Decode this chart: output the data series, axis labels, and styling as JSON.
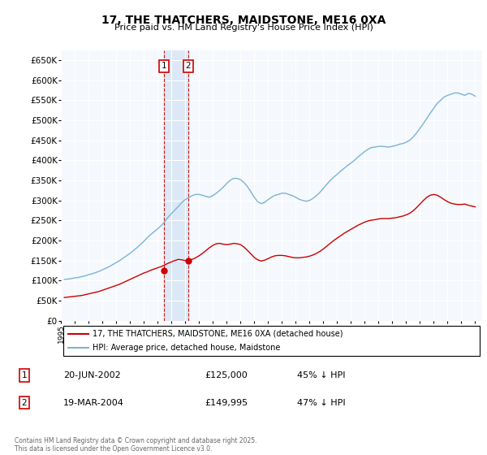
{
  "title": "17, THE THATCHERS, MAIDSTONE, ME16 0XA",
  "subtitle": "Price paid vs. HM Land Registry's House Price Index (HPI)",
  "ylim": [
    0,
    675000
  ],
  "yticks": [
    0,
    50000,
    100000,
    150000,
    200000,
    250000,
    300000,
    350000,
    400000,
    450000,
    500000,
    550000,
    600000,
    650000
  ],
  "hpi_color": "#7ab4d8",
  "price_color": "#cc0000",
  "transaction1": {
    "date": "20-JUN-2002",
    "price": 125000,
    "hpi_pct": "45% ↓ HPI",
    "label": "1"
  },
  "transaction2": {
    "date": "19-MAR-2004",
    "price": 149995,
    "hpi_pct": "47% ↓ HPI",
    "label": "2"
  },
  "legend_line1": "17, THE THATCHERS, MAIDSTONE, ME16 0XA (detached house)",
  "legend_line2": "HPI: Average price, detached house, Maidstone",
  "footer": "Contains HM Land Registry data © Crown copyright and database right 2025.\nThis data is licensed under the Open Government Licence v3.0.",
  "hpi_data_x": [
    1995.25,
    1995.5,
    1995.75,
    1996.0,
    1996.25,
    1996.5,
    1996.75,
    1997.0,
    1997.25,
    1997.5,
    1997.75,
    1998.0,
    1998.25,
    1998.5,
    1998.75,
    1999.0,
    1999.25,
    1999.5,
    1999.75,
    2000.0,
    2000.25,
    2000.5,
    2000.75,
    2001.0,
    2001.25,
    2001.5,
    2001.75,
    2002.0,
    2002.25,
    2002.5,
    2002.75,
    2003.0,
    2003.25,
    2003.5,
    2003.75,
    2004.0,
    2004.25,
    2004.5,
    2004.75,
    2005.0,
    2005.25,
    2005.5,
    2005.75,
    2006.0,
    2006.25,
    2006.5,
    2006.75,
    2007.0,
    2007.25,
    2007.5,
    2007.75,
    2008.0,
    2008.25,
    2008.5,
    2008.75,
    2009.0,
    2009.25,
    2009.5,
    2009.75,
    2010.0,
    2010.25,
    2010.5,
    2010.75,
    2011.0,
    2011.25,
    2011.5,
    2011.75,
    2012.0,
    2012.25,
    2012.5,
    2012.75,
    2013.0,
    2013.25,
    2013.5,
    2013.75,
    2014.0,
    2014.25,
    2014.5,
    2014.75,
    2015.0,
    2015.25,
    2015.5,
    2015.75,
    2016.0,
    2016.25,
    2016.5,
    2016.75,
    2017.0,
    2017.25,
    2017.5,
    2017.75,
    2018.0,
    2018.25,
    2018.5,
    2018.75,
    2019.0,
    2019.25,
    2019.5,
    2019.75,
    2020.0,
    2020.25,
    2020.5,
    2020.75,
    2021.0,
    2021.25,
    2021.5,
    2021.75,
    2022.0,
    2022.25,
    2022.5,
    2022.75,
    2023.0,
    2023.25,
    2023.5,
    2023.75,
    2024.0,
    2024.25,
    2024.5,
    2024.75,
    2025.0
  ],
  "hpi_data_y": [
    103000,
    104000,
    105000,
    107000,
    108000,
    110000,
    112000,
    115000,
    117000,
    120000,
    123000,
    127000,
    131000,
    135000,
    140000,
    145000,
    150000,
    156000,
    162000,
    168000,
    175000,
    182000,
    190000,
    198000,
    207000,
    215000,
    222000,
    229000,
    237000,
    246000,
    258000,
    267000,
    276000,
    285000,
    295000,
    302000,
    307000,
    312000,
    315000,
    315000,
    313000,
    310000,
    308000,
    312000,
    318000,
    325000,
    333000,
    342000,
    350000,
    355000,
    355000,
    352000,
    345000,
    335000,
    322000,
    308000,
    297000,
    292000,
    295000,
    302000,
    308000,
    313000,
    315000,
    318000,
    318000,
    315000,
    312000,
    308000,
    303000,
    300000,
    298000,
    300000,
    305000,
    312000,
    320000,
    330000,
    340000,
    350000,
    358000,
    365000,
    373000,
    380000,
    387000,
    393000,
    400000,
    408000,
    415000,
    422000,
    428000,
    432000,
    433000,
    435000,
    435000,
    434000,
    433000,
    435000,
    437000,
    440000,
    442000,
    445000,
    450000,
    458000,
    468000,
    480000,
    492000,
    505000,
    518000,
    530000,
    542000,
    550000,
    558000,
    562000,
    565000,
    568000,
    568000,
    565000,
    562000,
    567000,
    565000,
    560000
  ],
  "price_data_x": [
    1995.25,
    1995.5,
    1995.75,
    1996.0,
    1996.25,
    1996.5,
    1996.75,
    1997.0,
    1997.25,
    1997.5,
    1997.75,
    1998.0,
    1998.25,
    1998.5,
    1998.75,
    1999.0,
    1999.25,
    1999.5,
    1999.75,
    2000.0,
    2000.25,
    2000.5,
    2000.75,
    2001.0,
    2001.25,
    2001.5,
    2001.75,
    2002.0,
    2002.25,
    2002.5,
    2002.75,
    2003.0,
    2003.25,
    2003.5,
    2003.75,
    2004.0,
    2004.25,
    2004.5,
    2004.75,
    2005.0,
    2005.25,
    2005.5,
    2005.75,
    2006.0,
    2006.25,
    2006.5,
    2006.75,
    2007.0,
    2007.25,
    2007.5,
    2007.75,
    2008.0,
    2008.25,
    2008.5,
    2008.75,
    2009.0,
    2009.25,
    2009.5,
    2009.75,
    2010.0,
    2010.25,
    2010.5,
    2010.75,
    2011.0,
    2011.25,
    2011.5,
    2011.75,
    2012.0,
    2012.25,
    2012.5,
    2012.75,
    2013.0,
    2013.25,
    2013.5,
    2013.75,
    2014.0,
    2014.25,
    2014.5,
    2014.75,
    2015.0,
    2015.25,
    2015.5,
    2015.75,
    2016.0,
    2016.25,
    2016.5,
    2016.75,
    2017.0,
    2017.25,
    2017.5,
    2017.75,
    2018.0,
    2018.25,
    2018.5,
    2018.75,
    2019.0,
    2019.25,
    2019.5,
    2019.75,
    2020.0,
    2020.25,
    2020.5,
    2020.75,
    2021.0,
    2021.25,
    2021.5,
    2021.75,
    2022.0,
    2022.25,
    2022.5,
    2022.75,
    2023.0,
    2023.25,
    2023.5,
    2023.75,
    2024.0,
    2024.25,
    2024.5,
    2024.75,
    2025.0
  ],
  "price_data_y": [
    58000,
    59000,
    60000,
    61000,
    62000,
    63000,
    65000,
    67000,
    69000,
    71000,
    73000,
    76000,
    79000,
    82000,
    85000,
    88000,
    91000,
    95000,
    99000,
    103000,
    107000,
    111000,
    115000,
    119000,
    122000,
    126000,
    129000,
    132000,
    135000,
    139000,
    143000,
    147000,
    150000,
    153000,
    152000,
    150000,
    151000,
    153000,
    157000,
    162000,
    168000,
    175000,
    182000,
    188000,
    192000,
    193000,
    191000,
    190000,
    191000,
    193000,
    192000,
    190000,
    184000,
    176000,
    167000,
    158000,
    152000,
    149000,
    151000,
    155000,
    159000,
    162000,
    163000,
    163000,
    162000,
    160000,
    158000,
    157000,
    157000,
    158000,
    159000,
    161000,
    164000,
    168000,
    173000,
    179000,
    186000,
    193000,
    200000,
    206000,
    212000,
    218000,
    223000,
    228000,
    233000,
    238000,
    242000,
    246000,
    249000,
    251000,
    252000,
    254000,
    255000,
    255000,
    255000,
    256000,
    257000,
    259000,
    261000,
    264000,
    268000,
    274000,
    282000,
    291000,
    300000,
    308000,
    313000,
    315000,
    313000,
    308000,
    302000,
    297000,
    293000,
    291000,
    290000,
    290000,
    291000,
    288000,
    286000,
    284000
  ],
  "vline1_x": 2002.46,
  "vline2_x": 2004.21,
  "marker1_x": 2002.46,
  "marker1_y": 125000,
  "marker2_x": 2004.21,
  "marker2_y": 149995,
  "xmin": 1995,
  "xmax": 2025.5,
  "background_color": "#f5f8fc",
  "shade_color": "#dce8f5"
}
